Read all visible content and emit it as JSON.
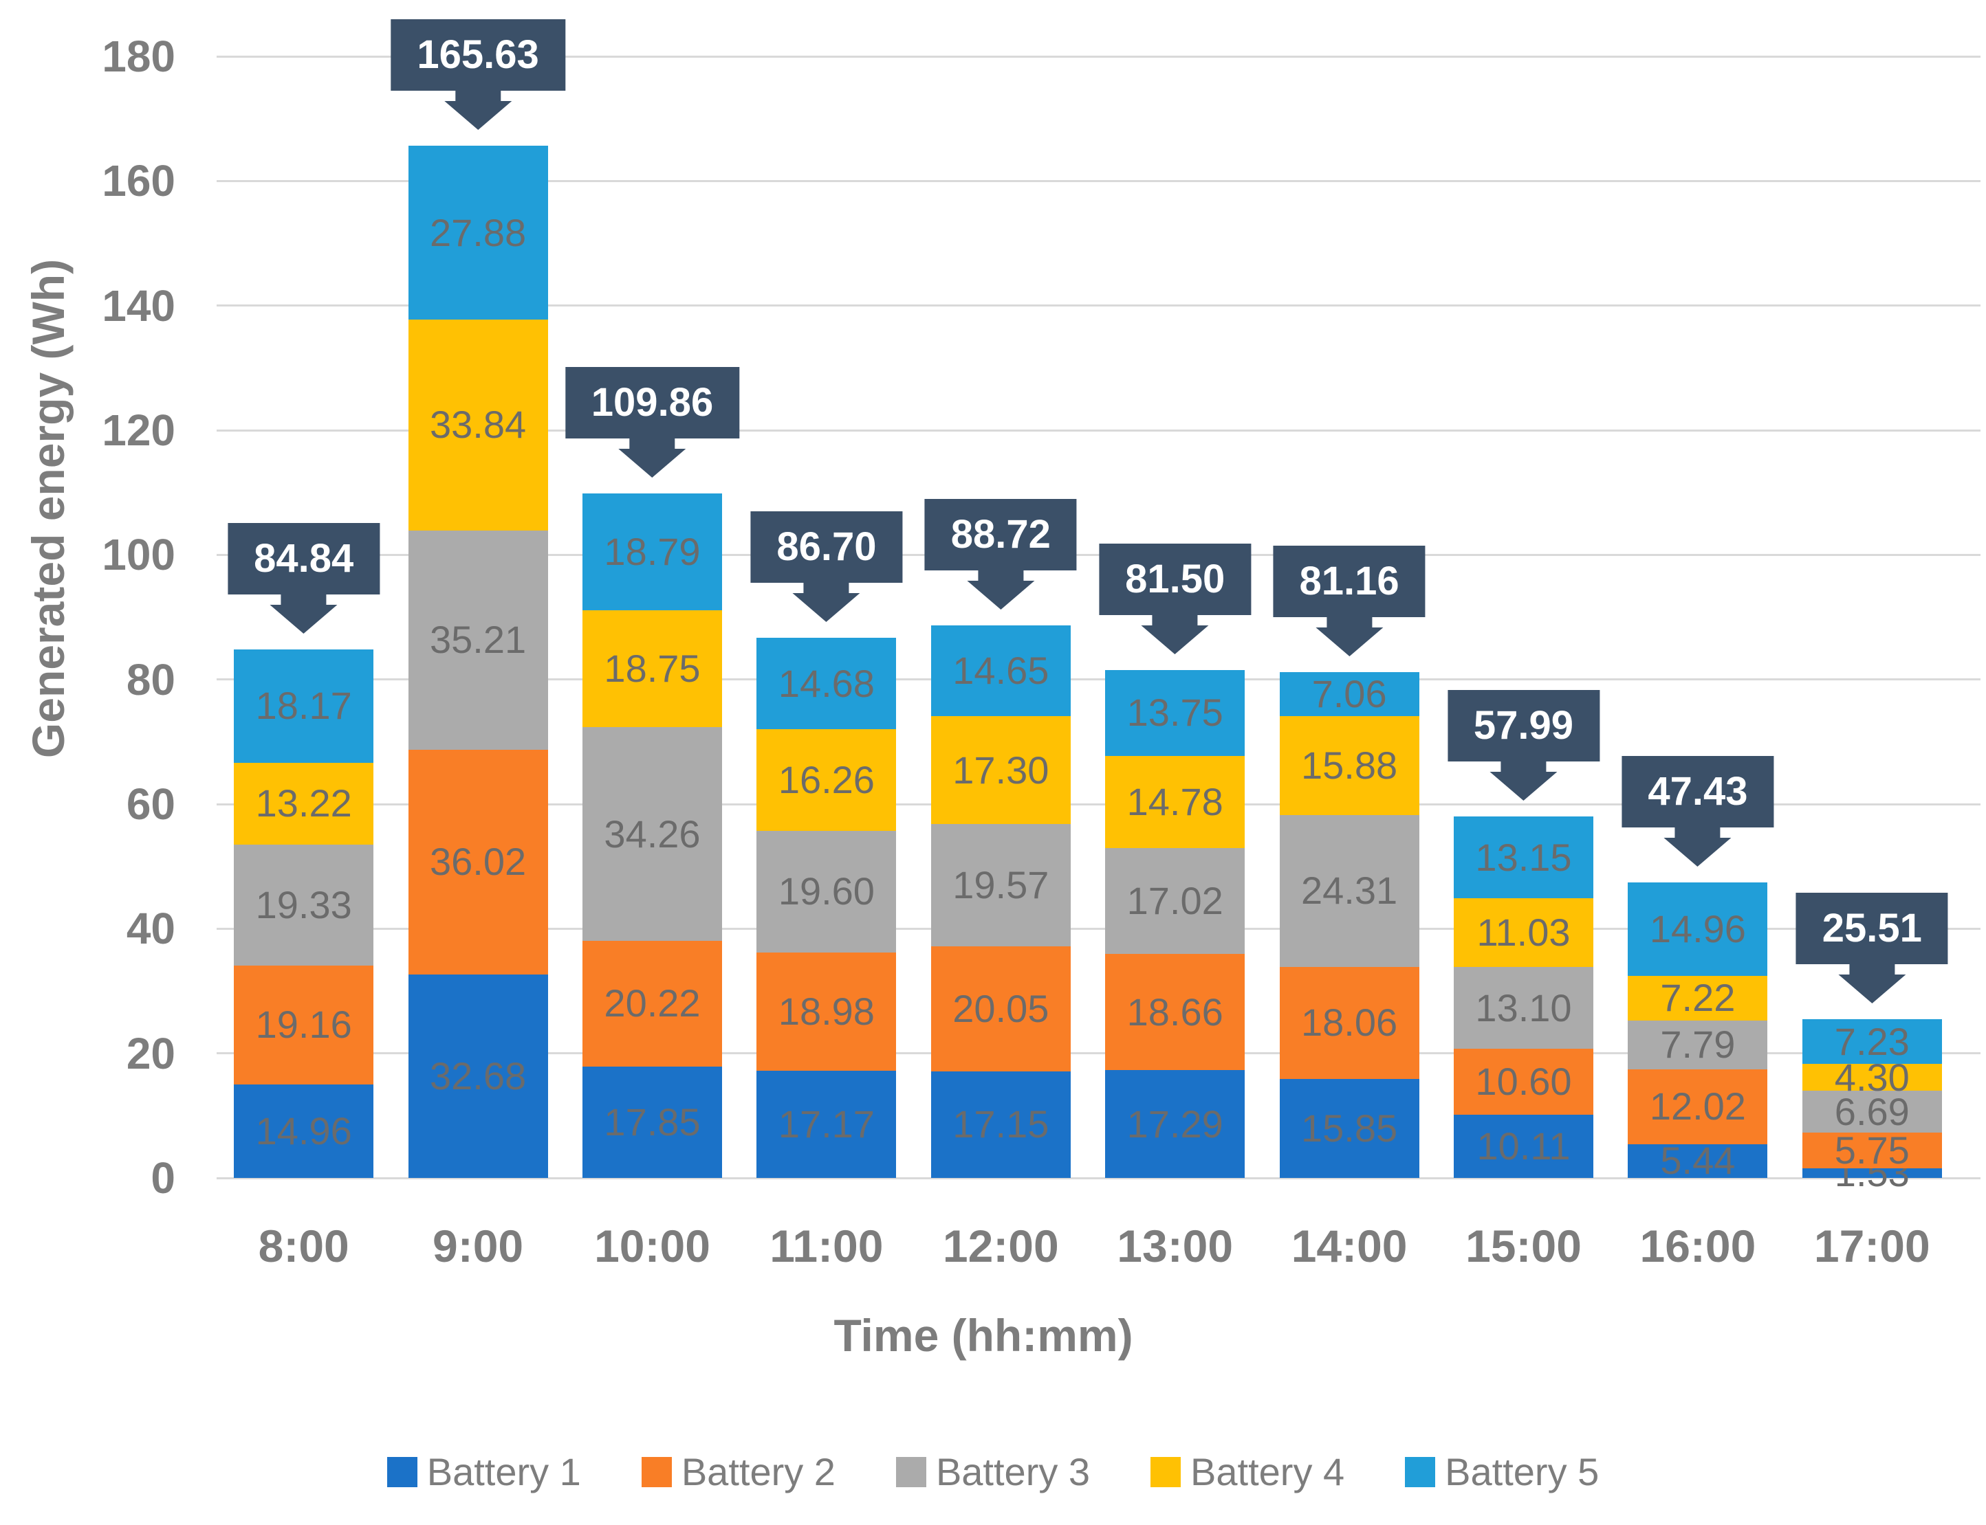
{
  "chart_data": {
    "type": "bar",
    "stacked": true,
    "title": "",
    "xlabel": "Time (hh:mm)",
    "ylabel": "Generated energy (Wh)",
    "categories": [
      "8:00",
      "9:00",
      "10:00",
      "11:00",
      "12:00",
      "13:00",
      "14:00",
      "15:00",
      "16:00",
      "17:00"
    ],
    "series": [
      {
        "name": "Battery 1",
        "color": "#1B72C8",
        "values": [
          14.96,
          32.68,
          17.85,
          17.17,
          17.15,
          17.29,
          15.85,
          10.11,
          5.44,
          1.53
        ]
      },
      {
        "name": "Battery 2",
        "color": "#F97E26",
        "values": [
          19.16,
          36.02,
          20.22,
          18.98,
          20.05,
          18.66,
          18.06,
          10.6,
          12.02,
          5.75
        ]
      },
      {
        "name": "Battery 3",
        "color": "#ABABAB",
        "values": [
          19.33,
          35.21,
          34.26,
          19.6,
          19.57,
          17.02,
          24.31,
          13.1,
          7.79,
          6.69
        ]
      },
      {
        "name": "Battery 4",
        "color": "#FFC103",
        "values": [
          13.22,
          33.84,
          18.75,
          16.26,
          17.3,
          14.78,
          15.88,
          11.03,
          7.22,
          4.3
        ]
      },
      {
        "name": "Battery 5",
        "color": "#219ED8",
        "values": [
          18.17,
          27.88,
          18.79,
          14.68,
          14.65,
          13.75,
          7.06,
          13.15,
          14.96,
          7.23
        ]
      }
    ],
    "totals": [
      "84.84",
      "165.63",
      "109.86",
      "86.70",
      "88.72",
      "81.50",
      "81.16",
      "57.99",
      "47.43",
      "25.51"
    ],
    "ylim": [
      0,
      180
    ],
    "yticks": [
      0,
      20,
      40,
      60,
      80,
      100,
      120,
      140,
      160,
      180
    ],
    "grid": true,
    "legend_position": "bottom"
  },
  "style": {
    "callout_color": "#3B5068",
    "callout_text_color": "#FFFFFF",
    "gridline_color": "#D9D9D9",
    "axis_text_color": "#7D7D7D",
    "segment_label_color": "#6B6B6B",
    "background": "#FFFFFF"
  }
}
